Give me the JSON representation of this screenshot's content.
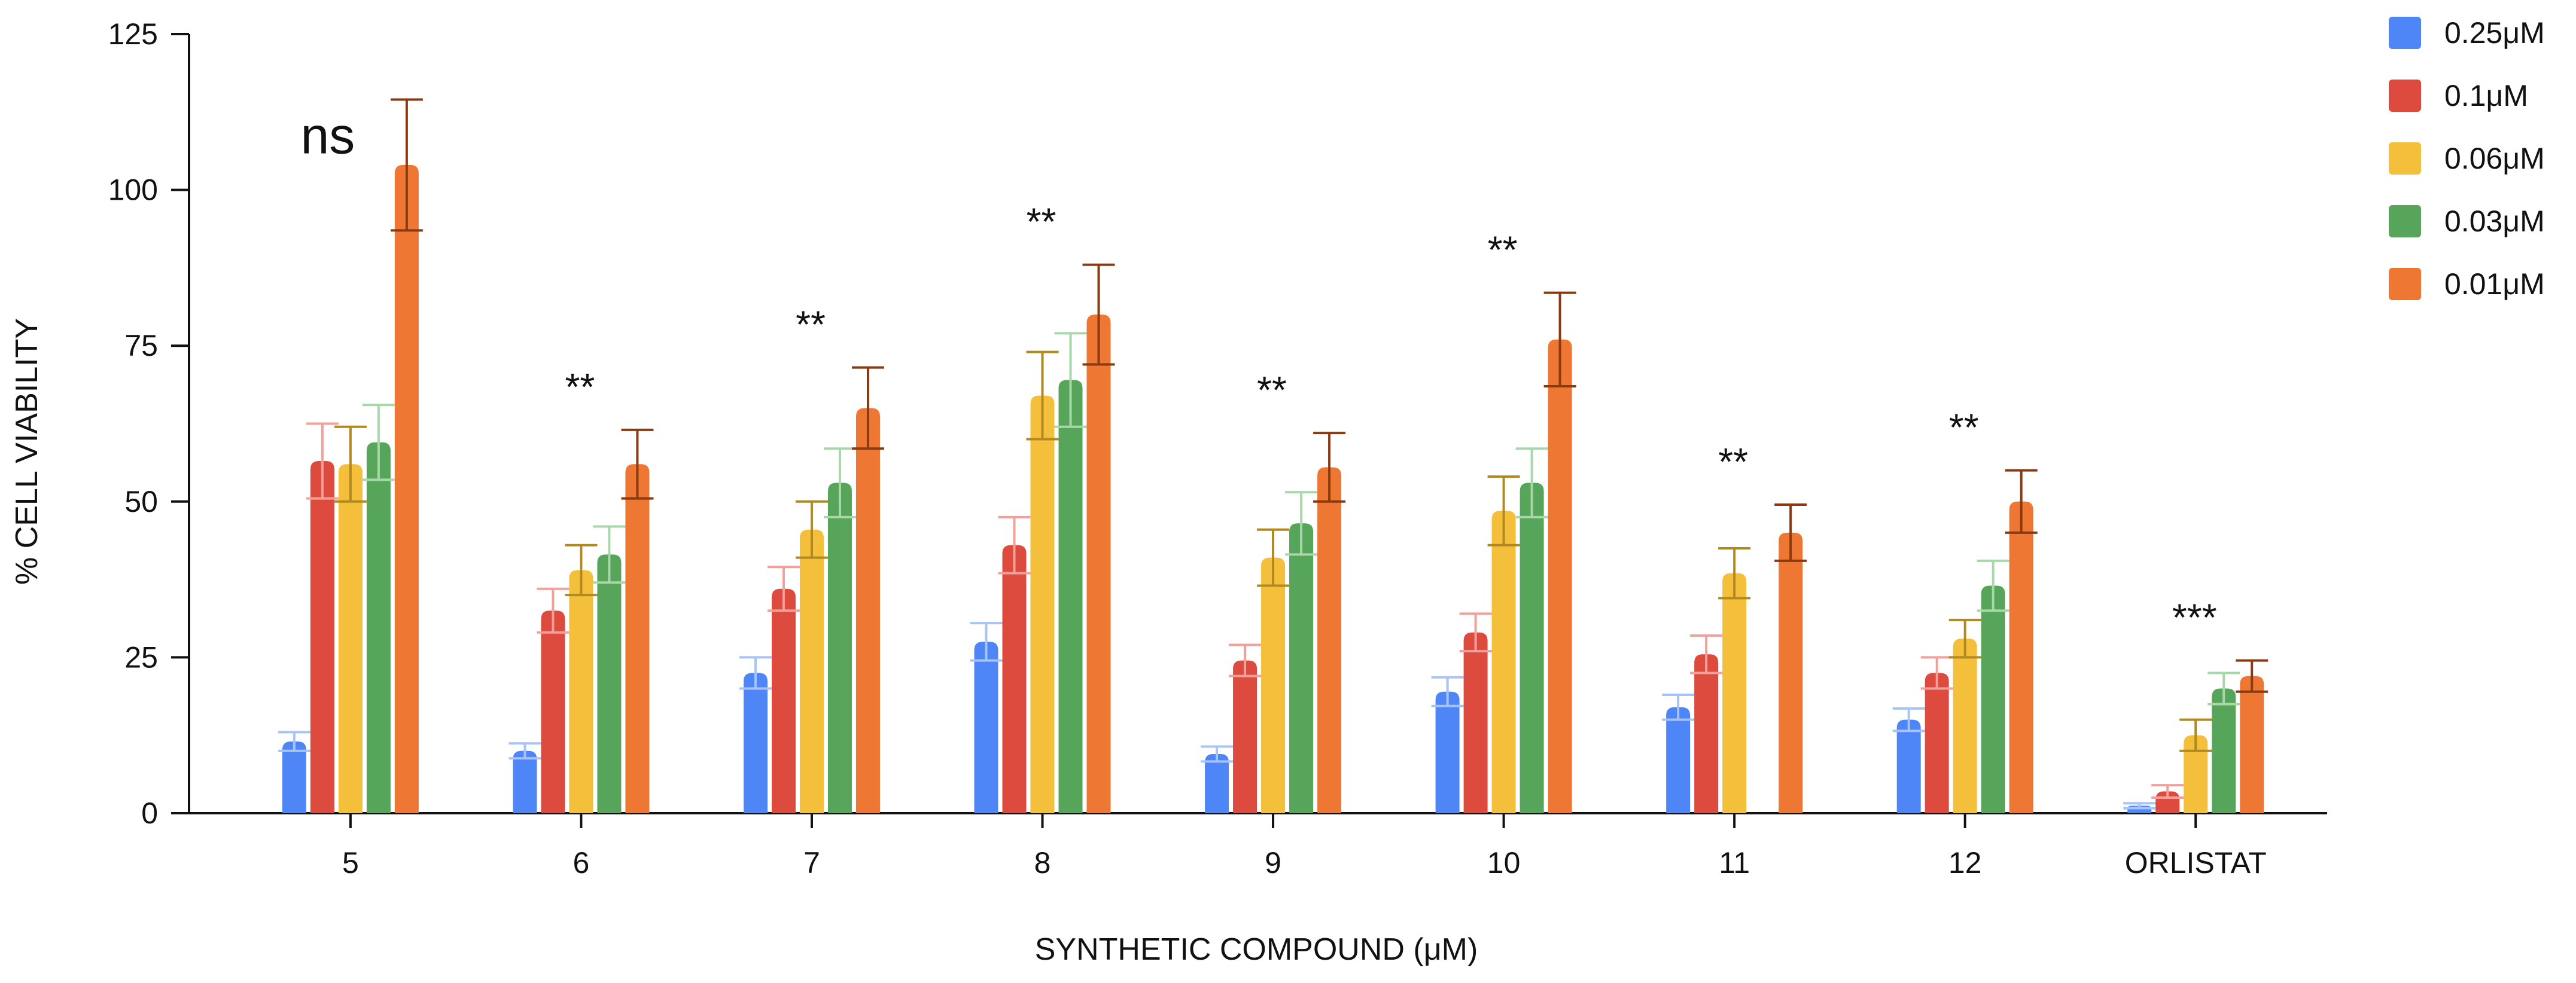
{
  "chart_data": {
    "type": "bar",
    "title": "",
    "xlabel": "SYNTHETIC COMPOUND (μM)",
    "ylabel": "% CELL VIABILITY",
    "ylim": [
      0,
      125
    ],
    "yticks": [
      0,
      25,
      50,
      75,
      100,
      125
    ],
    "grid": false,
    "legend_position": "top-right",
    "categories": [
      "5",
      "6",
      "7",
      "8",
      "9",
      "10",
      "11",
      "12",
      "ORLISTAT"
    ],
    "series": [
      {
        "name": "0.25μM",
        "color": "#4f86f7",
        "error_color": "#a8c4f7",
        "values": [
          11.5,
          10,
          22.5,
          27.5,
          9.5,
          19.5,
          17,
          15,
          1.2
        ],
        "errors": [
          1.5,
          1.2,
          2.5,
          3,
          1.2,
          2.3,
          2,
          1.8,
          0.4
        ]
      },
      {
        "name": "0.1μM",
        "color": "#dc4b3e",
        "error_color": "#f2a09a",
        "values": [
          56.5,
          32.5,
          36,
          43,
          24.5,
          29,
          25.5,
          22.5,
          3.5
        ],
        "errors": [
          6,
          3.5,
          3.5,
          4.5,
          2.5,
          3,
          3,
          2.5,
          1
        ]
      },
      {
        "name": "0.06μM",
        "color": "#f4bf3b",
        "error_color": "#b08a20",
        "values": [
          56,
          39,
          45.5,
          67,
          41,
          48.5,
          38.5,
          28,
          12.5
        ],
        "errors": [
          6,
          4,
          4.5,
          7,
          4.5,
          5.5,
          4,
          3,
          2.5
        ]
      },
      {
        "name": "0.03μM",
        "color": "#57a55a",
        "error_color": "#a8d8aa",
        "values": [
          59.5,
          41.5,
          53,
          69.5,
          46.5,
          53,
          0,
          36.5,
          20
        ],
        "errors": [
          6,
          4.5,
          5.5,
          7.5,
          5,
          5.5,
          0,
          4,
          2.5
        ]
      },
      {
        "name": "0.01μM",
        "color": "#ee7733",
        "error_color": "#8a3a10",
        "values": [
          104,
          56,
          65,
          80,
          55.5,
          76,
          45,
          50,
          22
        ],
        "errors": [
          10.5,
          5.5,
          6.5,
          8,
          5.5,
          7.5,
          4.5,
          5,
          2.5
        ]
      }
    ],
    "annotations": [
      "ns",
      "**",
      "**",
      "**",
      "**",
      "**",
      "**",
      "**",
      "***"
    ]
  }
}
